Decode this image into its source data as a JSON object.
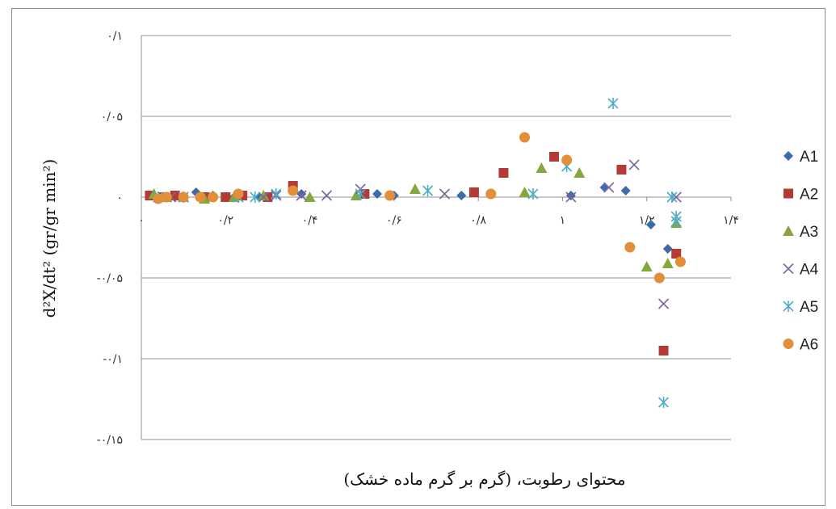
{
  "chart_data": {
    "type": "scatter",
    "xlabel": "محتوای رطوبت، (گرم بر گرم ماده خشک)",
    "ylabel": "d²X/dt² (gr/gr min²)",
    "xlim": [
      0,
      1.4
    ],
    "ylim": [
      -0.15,
      0.1
    ],
    "x_ticks": [
      {
        "value": 0,
        "label": "۰"
      },
      {
        "value": 0.2,
        "label": "۰/۲"
      },
      {
        "value": 0.4,
        "label": "۰/۴"
      },
      {
        "value": 0.6,
        "label": "۰/۶"
      },
      {
        "value": 0.8,
        "label": "۰/۸"
      },
      {
        "value": 1.0,
        "label": "۱"
      },
      {
        "value": 1.2,
        "label": "۱/۲"
      },
      {
        "value": 1.4,
        "label": "۱/۴"
      }
    ],
    "y_ticks": [
      {
        "value": 0.1,
        "label": "۰/۱"
      },
      {
        "value": 0.05,
        "label": "۰/۰۵"
      },
      {
        "value": 0,
        "label": "۰"
      },
      {
        "value": -0.05,
        "label": "-۰/۰۵"
      },
      {
        "value": -0.1,
        "label": "-۰/۱"
      },
      {
        "value": -0.15,
        "label": "-۰/۱۵"
      }
    ],
    "grid": "horizontal",
    "legend_position": "right",
    "series": [
      {
        "name": "A1",
        "marker": "diamond",
        "color": "#3f6aa9",
        "points": [
          [
            0.02,
            0.001
          ],
          [
            0.05,
            0.0
          ],
          [
            0.08,
            0.0
          ],
          [
            0.13,
            0.003
          ],
          [
            0.17,
            0.001
          ],
          [
            0.22,
            0.0
          ],
          [
            0.28,
            0.0
          ],
          [
            0.38,
            0.002
          ],
          [
            0.56,
            0.002
          ],
          [
            0.6,
            0.001
          ],
          [
            0.76,
            0.001
          ],
          [
            1.02,
            0.001
          ],
          [
            1.1,
            0.006
          ],
          [
            1.15,
            0.004
          ],
          [
            1.21,
            -0.017
          ],
          [
            1.25,
            -0.032
          ]
        ]
      },
      {
        "name": "A2",
        "marker": "square",
        "color": "#b33b36",
        "points": [
          [
            0.02,
            0.001
          ],
          [
            0.05,
            0.0
          ],
          [
            0.08,
            0.001
          ],
          [
            0.15,
            0.0
          ],
          [
            0.2,
            0.0
          ],
          [
            0.24,
            0.001
          ],
          [
            0.3,
            0.0
          ],
          [
            0.36,
            0.007
          ],
          [
            0.53,
            0.002
          ],
          [
            0.79,
            0.003
          ],
          [
            0.86,
            0.015
          ],
          [
            0.98,
            0.025
          ],
          [
            1.14,
            0.017
          ],
          [
            1.24,
            -0.095
          ],
          [
            1.27,
            -0.035
          ]
        ]
      },
      {
        "name": "A3",
        "marker": "triangle",
        "color": "#84a83d",
        "points": [
          [
            0.03,
            0.002
          ],
          [
            0.06,
            0.0
          ],
          [
            0.1,
            0.0
          ],
          [
            0.15,
            -0.001
          ],
          [
            0.22,
            0.0
          ],
          [
            0.29,
            0.001
          ],
          [
            0.4,
            0.0
          ],
          [
            0.51,
            0.001
          ],
          [
            0.65,
            0.005
          ],
          [
            0.91,
            0.003
          ],
          [
            0.95,
            0.018
          ],
          [
            1.04,
            0.015
          ],
          [
            1.2,
            -0.043
          ],
          [
            1.25,
            -0.041
          ],
          [
            1.27,
            -0.016
          ]
        ]
      },
      {
        "name": "A4",
        "marker": "x",
        "color": "#7d64a0",
        "points": [
          [
            0.04,
            0.0
          ],
          [
            0.07,
            0.0
          ],
          [
            0.1,
            0.0
          ],
          [
            0.23,
            0.0
          ],
          [
            0.29,
            0.0
          ],
          [
            0.32,
            0.001
          ],
          [
            0.38,
            0.001
          ],
          [
            0.44,
            0.001
          ],
          [
            0.52,
            0.005
          ],
          [
            0.72,
            0.002
          ],
          [
            1.02,
            0.0
          ],
          [
            1.11,
            0.006
          ],
          [
            1.17,
            0.02
          ],
          [
            1.24,
            -0.066
          ],
          [
            1.27,
            0.0
          ]
        ]
      },
      {
        "name": "A5",
        "marker": "star",
        "color": "#4aaec6",
        "points": [
          [
            0.04,
            0.0
          ],
          [
            0.1,
            0.0
          ],
          [
            0.23,
            0.0
          ],
          [
            0.27,
            0.0
          ],
          [
            0.32,
            0.002
          ],
          [
            0.52,
            0.002
          ],
          [
            0.68,
            0.004
          ],
          [
            0.93,
            0.002
          ],
          [
            1.01,
            0.019
          ],
          [
            1.12,
            0.058
          ],
          [
            1.26,
            0.0
          ],
          [
            1.27,
            -0.012
          ],
          [
            1.27,
            -0.015
          ],
          [
            1.24,
            -0.127
          ]
        ]
      },
      {
        "name": "A6",
        "marker": "circle",
        "color": "#e38e39",
        "points": [
          [
            0.04,
            -0.001
          ],
          [
            0.06,
            0.0
          ],
          [
            0.1,
            0.0
          ],
          [
            0.14,
            0.0
          ],
          [
            0.17,
            0.0
          ],
          [
            0.23,
            0.002
          ],
          [
            0.36,
            0.004
          ],
          [
            0.59,
            0.001
          ],
          [
            0.83,
            0.002
          ],
          [
            0.91,
            0.037
          ],
          [
            1.01,
            0.023
          ],
          [
            1.16,
            -0.031
          ],
          [
            1.23,
            -0.05
          ],
          [
            1.28,
            -0.04
          ]
        ]
      }
    ]
  }
}
